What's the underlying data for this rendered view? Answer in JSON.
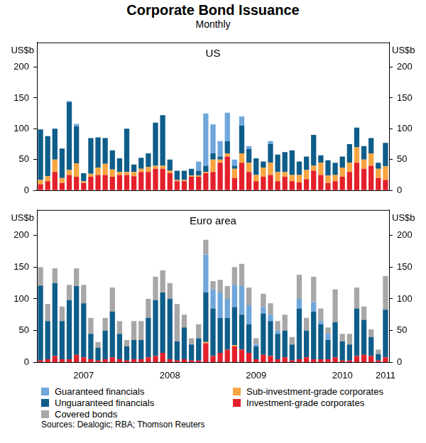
{
  "title": "Corporate Bond Issuance",
  "subtitle": "Monthly",
  "source": "Sources: Dealogic; RBA; Thomson Reuters",
  "legend": "bottom",
  "chart_data": [
    {
      "type": "bar",
      "title": "US",
      "ylabel": "US$b",
      "stacked": true,
      "grid": false,
      "tick_labels": "y",
      "categories": [
        null,
        null,
        null,
        null,
        null,
        null,
        "2007",
        null,
        null,
        null,
        null,
        null,
        null,
        null,
        null,
        null,
        null,
        null,
        "2008",
        null,
        null,
        null,
        null,
        null,
        null,
        null,
        null,
        null,
        null,
        null,
        "2009",
        null,
        null,
        null,
        null,
        null,
        null,
        null,
        null,
        null,
        null,
        null,
        "2010",
        null,
        null,
        null,
        null,
        null,
        "2011"
      ],
      "ylim": [
        0,
        240
      ],
      "yticks": [
        0,
        50,
        100,
        150,
        200
      ],
      "series": [
        {
          "name": "Investment-grade corporates",
          "color": "#e3202b",
          "values": [
            10,
            15,
            30,
            12,
            25,
            22,
            12,
            22,
            25,
            25,
            22,
            25,
            25,
            23,
            30,
            30,
            35,
            35,
            28,
            15,
            15,
            22,
            22,
            28,
            30,
            45,
            55,
            20,
            45,
            30,
            15,
            22,
            25,
            15,
            22,
            15,
            13,
            18,
            32,
            25,
            12,
            15,
            22,
            30,
            45,
            35,
            40,
            20,
            17
          ]
        },
        {
          "name": "Sub-investment-grade corporates",
          "color": "#f7a541",
          "values": [
            7,
            8,
            20,
            8,
            8,
            22,
            3,
            5,
            12,
            18,
            12,
            5,
            5,
            7,
            5,
            8,
            5,
            5,
            4,
            2,
            2,
            2,
            2,
            2,
            20,
            5,
            5,
            15,
            15,
            15,
            10,
            15,
            20,
            15,
            8,
            10,
            12,
            15,
            8,
            20,
            12,
            10,
            15,
            15,
            25,
            15,
            20,
            15,
            22
          ]
        },
        {
          "name": "Unguaranteed financials",
          "color": "#0e5d8a",
          "values": [
            82,
            65,
            50,
            48,
            110,
            60,
            13,
            58,
            49,
            42,
            31,
            22,
            70,
            12,
            18,
            22,
            70,
            82,
            18,
            15,
            15,
            11,
            8,
            10,
            10,
            5,
            20,
            5,
            45,
            22,
            27,
            10,
            30,
            28,
            32,
            40,
            22,
            22,
            50,
            12,
            25,
            20,
            18,
            30,
            32,
            22,
            25,
            10,
            38
          ]
        },
        {
          "name": "Guaranteed financials",
          "color": "#6fa6db",
          "values": [
            0,
            0,
            0,
            0,
            2,
            4,
            0,
            0,
            0,
            0,
            0,
            0,
            0,
            0,
            0,
            0,
            0,
            0,
            0,
            0,
            0,
            0,
            15,
            85,
            47,
            25,
            46,
            10,
            15,
            5,
            0,
            0,
            5,
            0,
            0,
            0,
            0,
            0,
            0,
            0,
            0,
            0,
            0,
            0,
            0,
            0,
            0,
            0,
            0
          ]
        }
      ]
    },
    {
      "type": "bar",
      "title": "Euro area",
      "ylabel": "US$b",
      "stacked": true,
      "grid": false,
      "categories": [
        null,
        null,
        null,
        null,
        null,
        null,
        "2007",
        null,
        null,
        null,
        null,
        null,
        null,
        null,
        null,
        null,
        null,
        null,
        "2008",
        null,
        null,
        null,
        null,
        null,
        null,
        null,
        null,
        null,
        null,
        null,
        "2009",
        null,
        null,
        null,
        null,
        null,
        null,
        null,
        null,
        null,
        null,
        null,
        "2010",
        null,
        null,
        null,
        null,
        null,
        "2011"
      ],
      "ylim": [
        0,
        240
      ],
      "yticks": [
        0,
        50,
        100,
        150,
        200
      ],
      "series": [
        {
          "name": "Investment-grade corporates",
          "color": "#e3202b",
          "values": [
            3,
            5,
            10,
            5,
            5,
            12,
            8,
            5,
            3,
            5,
            8,
            5,
            3,
            5,
            5,
            8,
            10,
            15,
            5,
            3,
            5,
            3,
            3,
            30,
            10,
            15,
            20,
            25,
            20,
            15,
            5,
            12,
            10,
            5,
            8,
            3,
            5,
            8,
            5,
            5,
            5,
            8,
            3,
            3,
            10,
            12,
            10,
            3,
            8
          ]
        },
        {
          "name": "Sub-investment-grade corporates",
          "color": "#f7a541",
          "values": [
            0,
            0,
            0,
            0,
            0,
            0,
            0,
            0,
            0,
            0,
            0,
            0,
            0,
            0,
            0,
            0,
            0,
            0,
            0,
            0,
            0,
            0,
            0,
            2,
            0,
            0,
            0,
            2,
            0,
            0,
            0,
            0,
            0,
            0,
            0,
            0,
            0,
            0,
            0,
            0,
            0,
            0,
            0,
            0,
            0,
            0,
            0,
            0,
            0
          ]
        },
        {
          "name": "Unguaranteed financials",
          "color": "#0e5d8a",
          "values": [
            118,
            60,
            115,
            60,
            93,
            108,
            85,
            40,
            20,
            45,
            72,
            40,
            22,
            30,
            30,
            62,
            88,
            95,
            95,
            30,
            50,
            25,
            35,
            78,
            75,
            55,
            50,
            60,
            55,
            45,
            20,
            65,
            55,
            40,
            42,
            25,
            80,
            42,
            75,
            55,
            30,
            55,
            30,
            25,
            75,
            55,
            30,
            10,
            75
          ]
        },
        {
          "name": "Guaranteed financials",
          "color": "#6fa6db",
          "values": [
            0,
            0,
            0,
            0,
            0,
            0,
            0,
            0,
            0,
            0,
            0,
            0,
            0,
            0,
            0,
            0,
            0,
            0,
            0,
            0,
            0,
            0,
            0,
            60,
            30,
            40,
            30,
            35,
            45,
            30,
            3,
            10,
            10,
            5,
            0,
            0,
            15,
            0,
            15,
            5,
            10,
            0,
            0,
            0,
            0,
            0,
            0,
            0,
            0
          ]
        },
        {
          "name": "Covered bonds",
          "color": "#a7a7a7",
          "values": [
            29,
            27,
            23,
            23,
            24,
            28,
            29,
            25,
            9,
            20,
            38,
            20,
            10,
            30,
            30,
            30,
            37,
            35,
            25,
            59,
            20,
            10,
            22,
            23,
            13,
            20,
            20,
            28,
            35,
            28,
            10,
            21,
            18,
            15,
            25,
            12,
            38,
            20,
            40,
            20,
            10,
            52,
            12,
            17,
            33,
            21,
            12,
            7,
            53
          ]
        }
      ]
    }
  ]
}
